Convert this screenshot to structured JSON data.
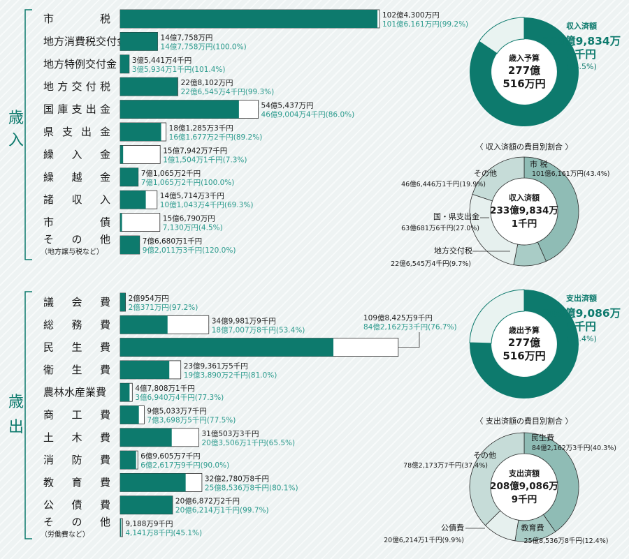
{
  "colors": {
    "accent": "#0d7a6d",
    "accent_text": "#2a9a8c",
    "donut_dark": "#0d7a6d",
    "donut_light": "#e9f3f1",
    "pie_colors": [
      "#8fbcb5",
      "#a9ccc6",
      "#e6f0ee",
      "#c6dcd8"
    ],
    "bar_empty": "#ffffff"
  },
  "chart_data": [
    {
      "type": "bar",
      "section": "歳入",
      "series": [
        {
          "name": "",
          "values": [
            1024300,
            147758,
            35441,
            228102,
            545437,
            181285,
            157942,
            71065,
            145714,
            156790,
            76680
          ]
        },
        {
          "name": "",
          "values": [
            1016161,
            147758,
            35934,
            226545,
            469004,
            161677,
            11504,
            71065,
            101043,
            7130,
            92011
          ]
        }
      ],
      "rows": [
        {
          "label": "市　　税",
          "sublabel": "",
          "budget": 1024300,
          "actual": 1016161,
          "budget_text": "102億4,300万円",
          "actual_text": "101億6,161万円(99.2%)"
        },
        {
          "label": "地方消費税交付金",
          "sublabel": "",
          "budget": 147758,
          "actual": 147758,
          "budget_text": "14億7,758万円",
          "actual_text": "14億7,758万円(100.0%)"
        },
        {
          "label": "地方特例交付金",
          "sublabel": "",
          "budget": 35441,
          "actual": 35934,
          "budget_text": "3億5,441万4千円",
          "actual_text": "3億5,934万1千円(101.4%)"
        },
        {
          "label": "地方交付税",
          "sublabel": "",
          "budget": 228102,
          "actual": 226545,
          "budget_text": "22億8,102万円",
          "actual_text": "22億6,545万4千円(99.3%)"
        },
        {
          "label": "国庫支出金",
          "sublabel": "",
          "budget": 545437,
          "actual": 469004,
          "budget_text": "54億5,437万円",
          "actual_text": "46億9,004万4千円(86.0%)"
        },
        {
          "label": "県支出金",
          "sublabel": "",
          "budget": 181285,
          "actual": 161677,
          "budget_text": "18億1,285万3千円",
          "actual_text": "16億1,677万2千円(89.2%)"
        },
        {
          "label": "繰入金",
          "sublabel": "",
          "budget": 157942,
          "actual": 11504,
          "budget_text": "15億7,942万7千円",
          "actual_text": "1億1,504万1千円(7.3%)"
        },
        {
          "label": "繰越金",
          "sublabel": "",
          "budget": 71065,
          "actual": 71065,
          "budget_text": "7億1,065万2千円",
          "actual_text": "7億1,065万2千円(100.0%)"
        },
        {
          "label": "諸収入",
          "sublabel": "",
          "budget": 145714,
          "actual": 101043,
          "budget_text": "14億5,714万3千円",
          "actual_text": "10億1,043万4千円(69.3%)"
        },
        {
          "label": "市債",
          "sublabel": "",
          "budget": 156790,
          "actual": 7130,
          "budget_text": "15億6,790万円",
          "actual_text": "7,130万円(4.5%)"
        },
        {
          "label": "その他",
          "sublabel": "（地方譲与税など）",
          "budget": 76680,
          "actual": 92011,
          "budget_text": "7億6,680万1千円",
          "actual_text": "9億2,011万3千円(120.0%)"
        }
      ]
    },
    {
      "type": "bar",
      "section": "歳出",
      "series": [
        {
          "name": "",
          "values": [
            20954,
            349981,
            1098425,
            239361,
            47808,
            95033,
            310503,
            69605,
            322780,
            206872,
            9188
          ]
        },
        {
          "name": "",
          "values": [
            20371,
            187007,
            842162,
            193890,
            36940,
            73698,
            203506,
            62617,
            258536,
            206214,
            4141
          ]
        }
      ],
      "rows": [
        {
          "label": "議会費",
          "sublabel": "",
          "budget": 20954,
          "actual": 20371,
          "budget_text": "2億954万円",
          "actual_text": "2億371万円(97.2%)"
        },
        {
          "label": "総務費",
          "sublabel": "",
          "budget": 349981,
          "actual": 187007,
          "budget_text": "34億9,981万9千円",
          "actual_text": "18億7,007万8千円(53.4%)"
        },
        {
          "label": "民生費",
          "sublabel": "",
          "budget": 1098425,
          "actual": 842162,
          "budget_text": "109億8,425万9千円",
          "actual_text": "84億2,162万3千円(76.7%)"
        },
        {
          "label": "衛生費",
          "sublabel": "",
          "budget": 239361,
          "actual": 193890,
          "budget_text": "23億9,361万5千円",
          "actual_text": "19億3,890万2千円(81.0%)"
        },
        {
          "label": "農林水産業費",
          "sublabel": "",
          "budget": 47808,
          "actual": 36940,
          "budget_text": "4億7,808万1千円",
          "actual_text": "3億6,940万4千円(77.3%)"
        },
        {
          "label": "商工費",
          "sublabel": "",
          "budget": 95033,
          "actual": 73698,
          "budget_text": "9億5,033万7千円",
          "actual_text": "7億3,698万5千円(77.5%)"
        },
        {
          "label": "土木費",
          "sublabel": "",
          "budget": 310503,
          "actual": 203506,
          "budget_text": "31億503万3千円",
          "actual_text": "20億3,506万1千円(65.5%)"
        },
        {
          "label": "消防費",
          "sublabel": "",
          "budget": 69605,
          "actual": 62617,
          "budget_text": "6億9,605万7千円",
          "actual_text": "6億2,617万9千円(90.0%)"
        },
        {
          "label": "教育費",
          "sublabel": "",
          "budget": 322780,
          "actual": 258536,
          "budget_text": "32億2,780万8千円",
          "actual_text": "25億8,536万8千円(80.1%)"
        },
        {
          "label": "公債費",
          "sublabel": "",
          "budget": 206872,
          "actual": 206214,
          "budget_text": "20億6,872万2千円",
          "actual_text": "20億6,214万1千円(99.7%)"
        },
        {
          "label": "その他",
          "sublabel": "（労働費など）",
          "budget": 9188,
          "actual": 4141,
          "budget_text": "9,188万9千円",
          "actual_text": "4,141万8千円(45.1%)"
        }
      ]
    },
    {
      "type": "pie",
      "title": "",
      "values": [
        84.5,
        15.5
      ],
      "center_caption": "歳入予算",
      "center_line1": "277億",
      "center_line2": "516万円",
      "done_label": "収入済額",
      "done_line1": "233億9,834万",
      "done_line2": "1千円",
      "done_pct": "(84.5%)"
    },
    {
      "type": "pie",
      "title": "〈 収入済額の費目別割合 〉",
      "center_caption": "収入済額",
      "center_line1": "233億9,834万",
      "center_line2": "1千円",
      "slices": [
        {
          "label": "市 税",
          "value": 43.4,
          "value_text": "101億6,161万円(43.4%)"
        },
        {
          "label": "地方交付税",
          "value": 9.7,
          "value_text": "22億6,545万4千円(9.7%)"
        },
        {
          "label": "国・県支出金",
          "value": 27.0,
          "value_text": "63億681万6千円(27.0%)"
        },
        {
          "label": "その他",
          "value": 19.9,
          "value_text": "46億6,446万1千円(19.9%)"
        }
      ]
    },
    {
      "type": "pie",
      "title": "",
      "values": [
        75.4,
        24.6
      ],
      "center_caption": "歳出予算",
      "center_line1": "277億",
      "center_line2": "516万円",
      "done_label": "支出済額",
      "done_line1": "208億9,086万",
      "done_line2": "9千円",
      "done_pct": "(75.4%)"
    },
    {
      "type": "pie",
      "title": "〈 支出済額の費目別割合 〉",
      "center_caption": "支出済額",
      "center_line1": "208億9,086万",
      "center_line2": "9千円",
      "slices": [
        {
          "label": "民生費",
          "value": 40.3,
          "value_text": "84億2,162万3千円(40.3%)"
        },
        {
          "label": "教育費",
          "value": 12.4,
          "value_text": "25億8,536万8千円(12.4%)"
        },
        {
          "label": "公債費",
          "value": 9.9,
          "value_text": "20億6,214万1千円(9.9%)"
        },
        {
          "label": "その他",
          "value": 37.4,
          "value_text": "78億2,173万7千円(37.4%)"
        }
      ]
    }
  ]
}
